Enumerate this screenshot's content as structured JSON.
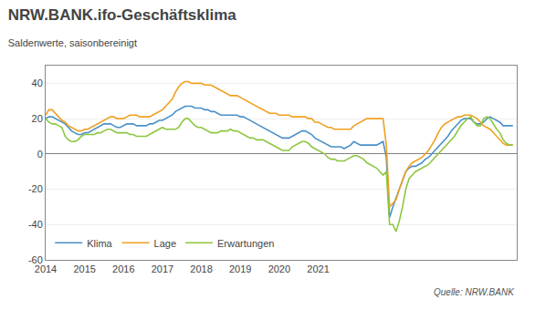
{
  "chart_data": {
    "type": "line",
    "title": "NRW.BANK.ifo-Geschäftsklima",
    "subtitle": "Saldenwerte, saisonbereinigt",
    "annotations": [
      "Quelle: NRW.BANK"
    ],
    "x": [
      2014,
      2014.0833,
      2014.1667,
      2014.25,
      2014.3333,
      2014.4167,
      2014.5,
      2014.5833,
      2014.6667,
      2014.75,
      2014.8333,
      2014.9167,
      2015,
      2015.0833,
      2015.1667,
      2015.25,
      2015.3333,
      2015.4167,
      2015.5,
      2015.5833,
      2015.6667,
      2015.75,
      2015.8333,
      2015.9167,
      2016,
      2016.0833,
      2016.1667,
      2016.25,
      2016.3333,
      2016.4167,
      2016.5,
      2016.5833,
      2016.6667,
      2016.75,
      2016.8333,
      2016.9167,
      2017,
      2017.0833,
      2017.1667,
      2017.25,
      2017.3333,
      2017.4167,
      2017.5,
      2017.5833,
      2017.6667,
      2017.75,
      2017.8333,
      2017.9167,
      2018,
      2018.0833,
      2018.1667,
      2018.25,
      2018.3333,
      2018.4167,
      2018.5,
      2018.5833,
      2018.6667,
      2018.75,
      2018.8333,
      2018.9167,
      2019,
      2019.0833,
      2019.1667,
      2019.25,
      2019.3333,
      2019.4167,
      2019.5,
      2019.5833,
      2019.6667,
      2019.75,
      2019.8333,
      2019.9167,
      2020,
      2020.0833,
      2020.1667,
      2020.25,
      2020.3333,
      2020.4167,
      2020.5,
      2020.5833,
      2020.6667,
      2020.75,
      2020.8333,
      2020.9167,
      2021,
      2021.0833,
      2021.1667,
      2021.25,
      2021.3333,
      2021.4167,
      2021.5,
      2021.5833,
      2021.6667,
      2021.75,
      2021.8333,
      2021.9167,
      2022,
      2022.0833,
      2022.1667,
      2022.25,
      2022.3333,
      2022.4167,
      2022.5,
      2022.5833,
      2022.6667,
      2022.75,
      2022.8333,
      2022.9167,
      2023,
      2023.0833,
      2023.1667,
      2023.25,
      2023.3333,
      2023.4167,
      2023.5,
      2023.5833,
      2023.6667,
      2023.75,
      2023.8333,
      2023.9167,
      2024,
      2024.0833,
      2024.1667,
      2024.25,
      2024.3333,
      2024.4167,
      2024.5,
      2024.5833,
      2024.6667,
      2024.75,
      2024.8333,
      2024.9167,
      2025,
      2025.0833,
      2025.1667,
      2025.25,
      2025.3333,
      2025.4167,
      2025.5,
      2025.5833,
      2025.6667,
      2025.75,
      2025.8333,
      2025.9167,
      2026
    ],
    "series": [
      {
        "name": "Klima",
        "color": "#4a90c8",
        "values": [
          20,
          21,
          21,
          20,
          19,
          18,
          17,
          15,
          13,
          12,
          11,
          11,
          12,
          12,
          13,
          14,
          15,
          16,
          17,
          17,
          17,
          16,
          15,
          15,
          16,
          17,
          17,
          17,
          16,
          16,
          16,
          16,
          17,
          17,
          18,
          19,
          19,
          20,
          21,
          22,
          24,
          25,
          26,
          27,
          27,
          27,
          26,
          26,
          26,
          25,
          25,
          24,
          24,
          23,
          22,
          22,
          22,
          22,
          22,
          22,
          21,
          21,
          20,
          19,
          18,
          17,
          16,
          15,
          14,
          13,
          12,
          11,
          10,
          9,
          9,
          9,
          10,
          11,
          12,
          13,
          13,
          12,
          11,
          9,
          8,
          7,
          6,
          5,
          4,
          4,
          4,
          4,
          3,
          4,
          5,
          7,
          6,
          5,
          5,
          5,
          5,
          5,
          5,
          6,
          7,
          -2,
          -36,
          -30,
          -25,
          -20,
          -15,
          -10,
          -8,
          -7,
          -7,
          -6,
          -5,
          -3,
          -2,
          0,
          2,
          4,
          6,
          8,
          10,
          13,
          15,
          17,
          19,
          20,
          20,
          20,
          18,
          17,
          17,
          18,
          20,
          21,
          20,
          19,
          18,
          16,
          16,
          16,
          16
        ]
      },
      {
        "name": "Lage",
        "color": "#f0a020",
        "values": [
          22,
          25,
          25,
          23,
          21,
          19,
          18,
          16,
          15,
          14,
          13,
          13,
          14,
          14,
          15,
          16,
          17,
          18,
          19,
          20,
          21,
          21,
          20,
          20,
          20,
          21,
          22,
          22,
          22,
          21,
          21,
          21,
          21,
          22,
          23,
          24,
          25,
          27,
          29,
          31,
          35,
          38,
          40,
          41,
          41,
          40,
          40,
          40,
          40,
          39,
          39,
          39,
          38,
          37,
          36,
          35,
          34,
          33,
          33,
          33,
          32,
          31,
          30,
          29,
          28,
          27,
          26,
          25,
          24,
          23,
          23,
          23,
          22,
          22,
          22,
          22,
          21,
          21,
          21,
          21,
          21,
          20,
          20,
          18,
          18,
          17,
          16,
          15,
          15,
          14,
          14,
          14,
          14,
          14,
          14,
          16,
          17,
          18,
          19,
          20,
          20,
          20,
          20,
          20,
          20,
          5,
          -30,
          -28,
          -26,
          -20,
          -15,
          -10,
          -7,
          -5,
          -4,
          -3,
          -2,
          0,
          2,
          5,
          8,
          12,
          15,
          17,
          18,
          19,
          20,
          21,
          21,
          22,
          22,
          22,
          21,
          20,
          18,
          16,
          15,
          14,
          12,
          10,
          8,
          6,
          5,
          5,
          5
        ]
      },
      {
        "name": "Erwartungen",
        "color": "#8dc640",
        "values": [
          20,
          18,
          17,
          17,
          16,
          15,
          10,
          8,
          7,
          7,
          8,
          10,
          11,
          11,
          11,
          11,
          12,
          12,
          13,
          14,
          14,
          13,
          12,
          12,
          12,
          12,
          11,
          11,
          10,
          10,
          10,
          10,
          11,
          12,
          13,
          14,
          15,
          14,
          14,
          14,
          14,
          15,
          18,
          20,
          20,
          18,
          16,
          15,
          15,
          14,
          13,
          12,
          12,
          12,
          13,
          13,
          13,
          14,
          13,
          13,
          12,
          11,
          10,
          9,
          9,
          8,
          8,
          8,
          7,
          6,
          5,
          4,
          3,
          2,
          2,
          2,
          4,
          5,
          6,
          7,
          7,
          6,
          4,
          3,
          2,
          1,
          0,
          -2,
          -3,
          -3,
          -4,
          -4,
          -4,
          -3,
          -2,
          -1,
          -1,
          -2,
          -3,
          -5,
          -6,
          -7,
          -8,
          -10,
          -12,
          -10,
          -40,
          -40,
          -44,
          -38,
          -30,
          -20,
          -14,
          -12,
          -10,
          -9,
          -8,
          -7,
          -6,
          -4,
          -2,
          0,
          2,
          4,
          6,
          8,
          10,
          13,
          16,
          18,
          20,
          21,
          18,
          16,
          16,
          20,
          21,
          20,
          17,
          14,
          12,
          8,
          6,
          5,
          5
        ]
      }
    ],
    "xlim": [
      2014,
      2026.1
    ],
    "xticks": [
      2014,
      2015,
      2016,
      2017,
      2018,
      2019,
      2020,
      2021
    ],
    "ylim": [
      -60,
      50
    ],
    "yticks": [
      -60,
      -40,
      -20,
      0,
      20,
      40
    ],
    "grid": true,
    "legend": "lower left"
  }
}
